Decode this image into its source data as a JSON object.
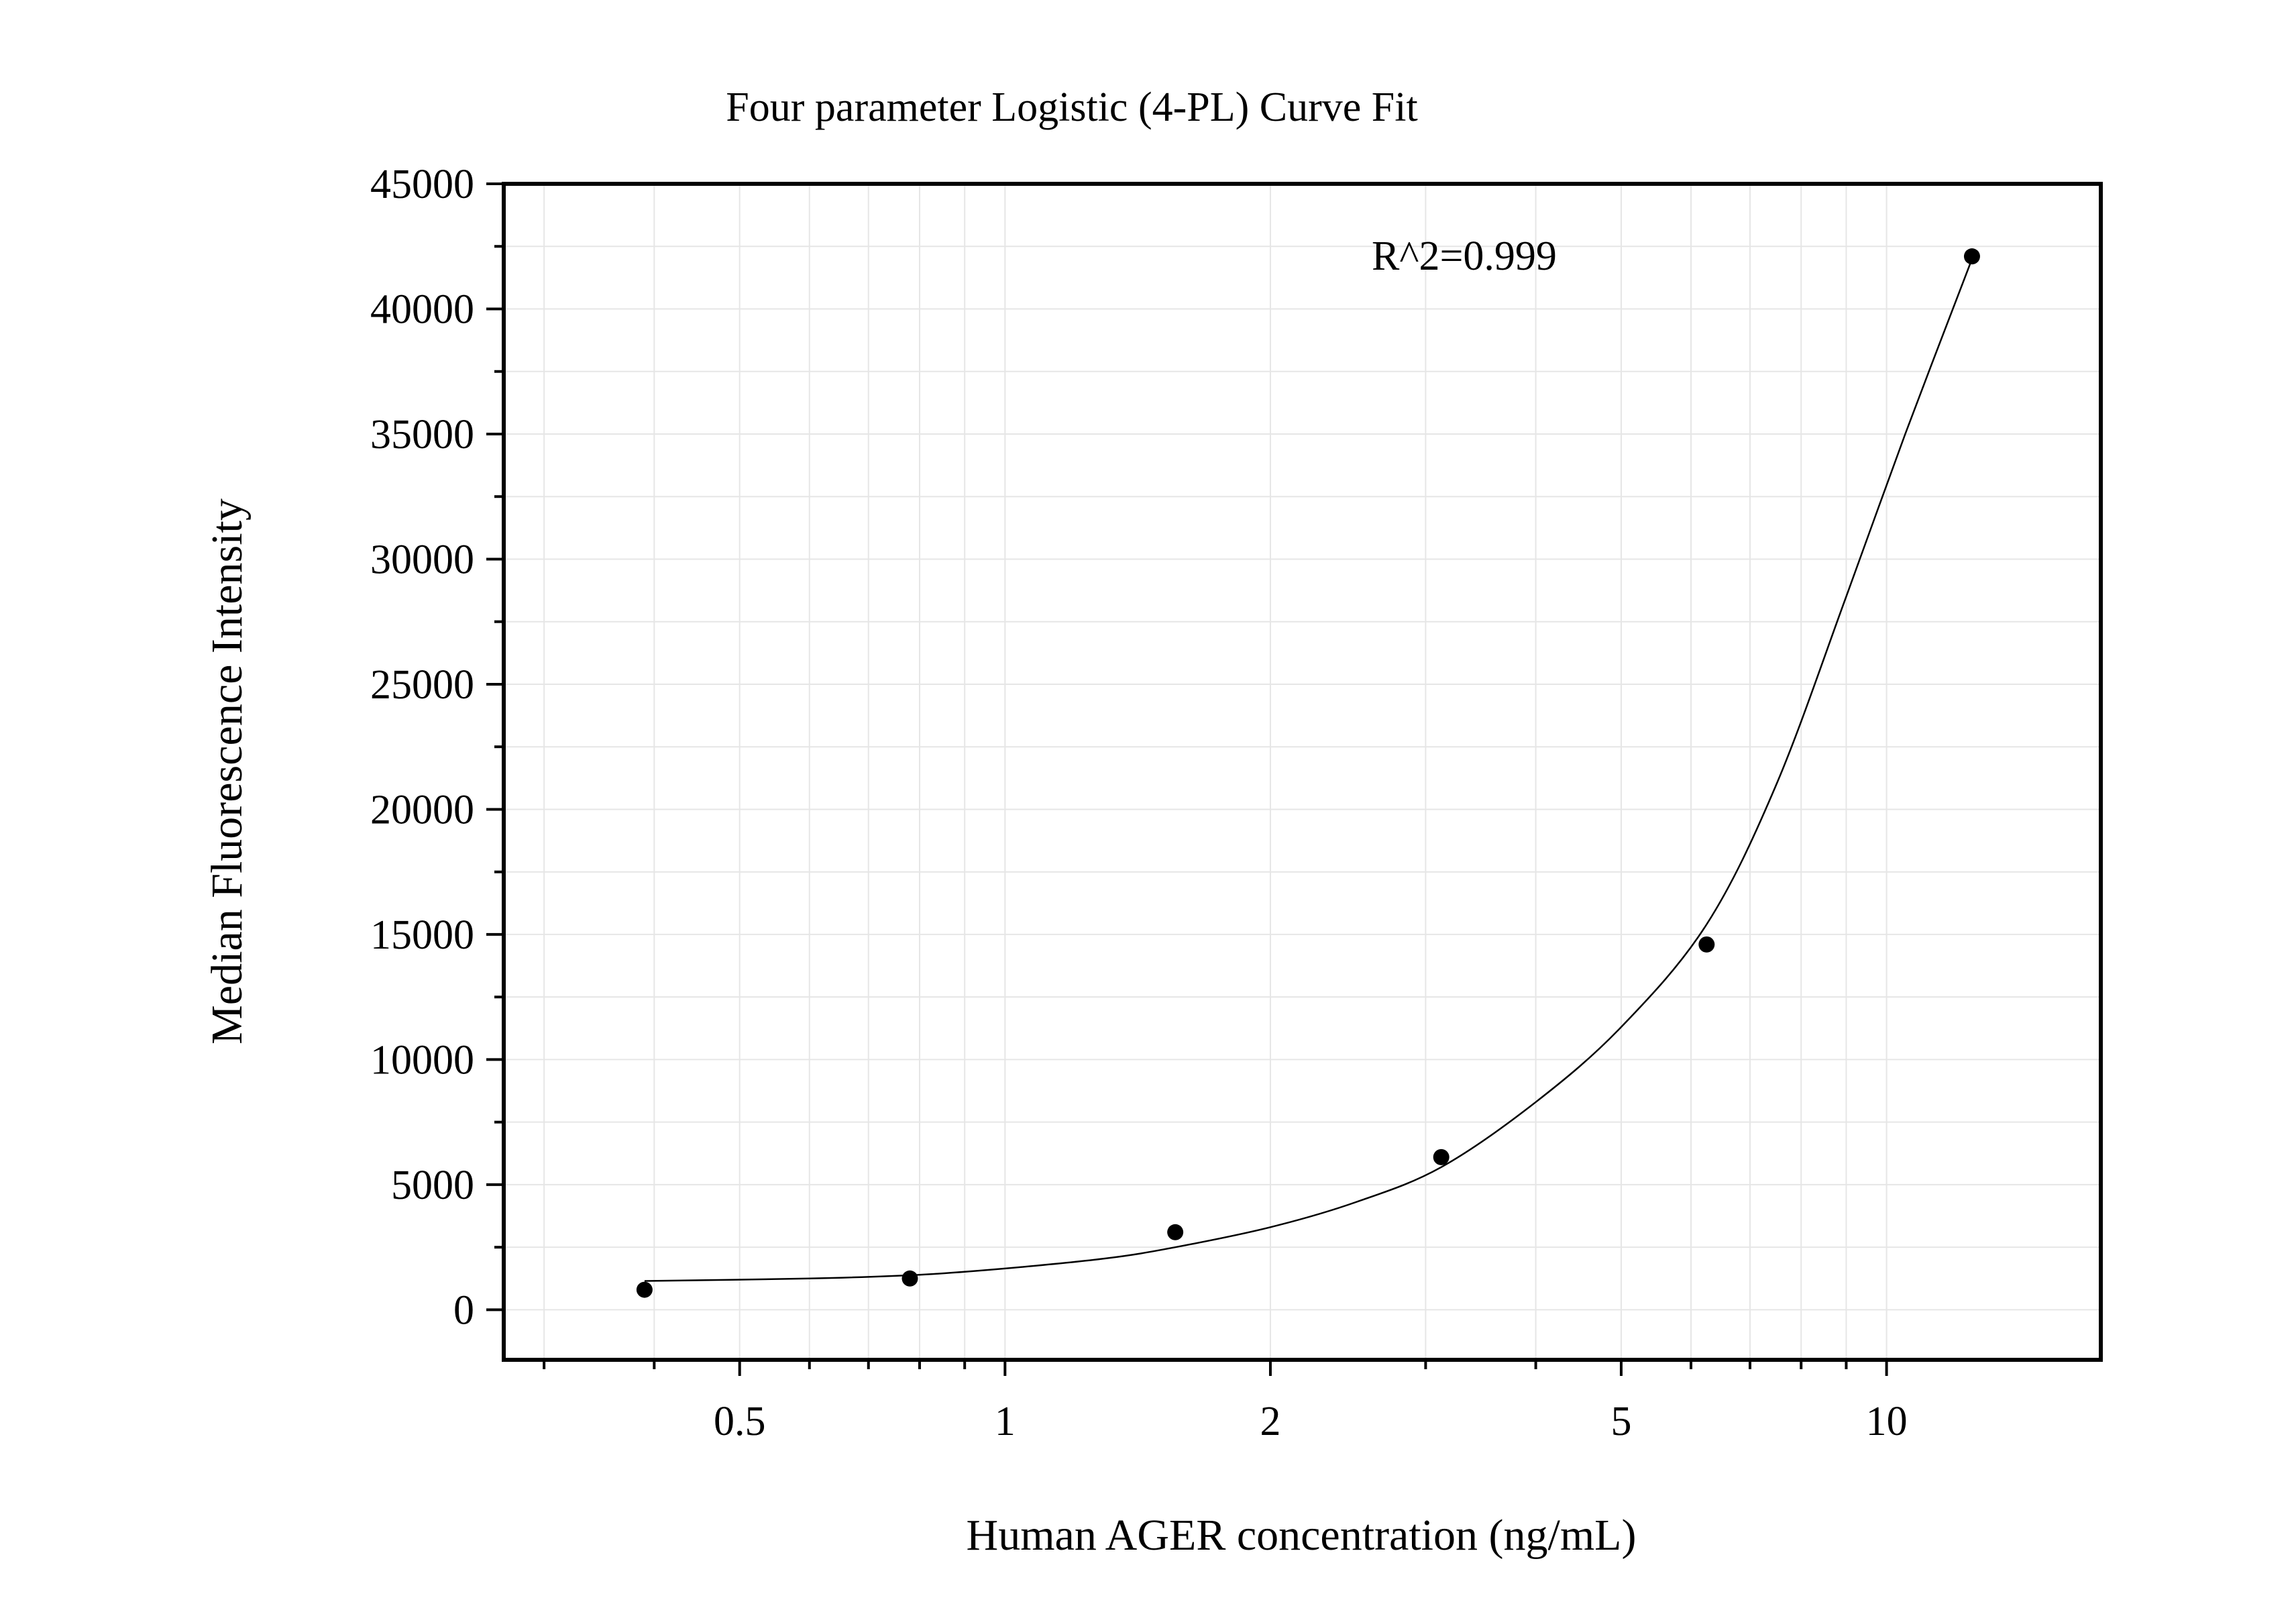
{
  "chart_data": {
    "type": "scatter",
    "title": "Four parameter Logistic (4-PL) Curve Fit",
    "xlabel": "Human AGER concentration (ng/mL)",
    "ylabel": "Median Fluorescence Intensity",
    "x_scale": "log",
    "xlim": [
      0.27,
      17.5
    ],
    "ylim": [
      -2000,
      45000
    ],
    "x_ticks": [
      0.5,
      1,
      2,
      5,
      10
    ],
    "x_tick_labels": [
      "0.5",
      "1",
      "2",
      "5",
      "10"
    ],
    "y_ticks": [
      0,
      5000,
      10000,
      15000,
      20000,
      25000,
      30000,
      35000,
      40000,
      45000
    ],
    "y_tick_labels": [
      "0",
      "5000",
      "10000",
      "15000",
      "20000",
      "25000",
      "30000",
      "35000",
      "40000",
      "45000"
    ],
    "grid": true,
    "annotation": "R^2=0.999",
    "series": [
      {
        "kind": "points",
        "x": [
          0.39,
          0.78,
          1.56,
          3.125,
          6.25,
          12.5
        ],
        "y": [
          800,
          1250,
          3100,
          6100,
          14600,
          42100
        ]
      },
      {
        "kind": "fit-curve",
        "x": [
          0.39,
          0.6,
          0.8,
          1.0,
          1.3,
          1.56,
          2.0,
          2.5,
          3.125,
          4.0,
          5.0,
          6.25,
          7.5,
          9.0,
          10.5,
          12.5
        ],
        "y": [
          1150,
          1250,
          1400,
          1650,
          2050,
          2500,
          3300,
          4300,
          5700,
          8300,
          11300,
          15400,
          21000,
          28500,
          35000,
          42000
        ]
      }
    ],
    "colors": {
      "marks": "#000000",
      "grid": "#e6e6e6",
      "frame": "#000000"
    }
  }
}
